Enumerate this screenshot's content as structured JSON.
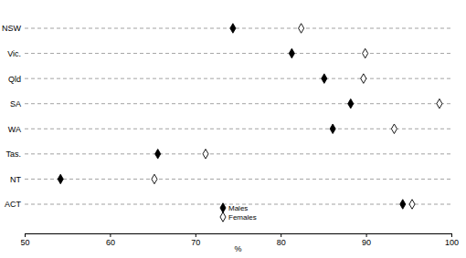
{
  "chart_data": {
    "type": "dot",
    "orientation": "horizontal",
    "categories": [
      "NSW",
      "Vic.",
      "Qld",
      "SA",
      "WA",
      "Tas.",
      "NT",
      "ACT"
    ],
    "series": [
      {
        "name": "Males",
        "color": "#000000",
        "marker": "diamond",
        "values": [
          74.4,
          81.3,
          85.1,
          88.2,
          86.1,
          65.6,
          54.2,
          94.3
        ]
      },
      {
        "name": "Females",
        "color": "#000000",
        "marker": "diamond-open",
        "values": [
          82.4,
          89.9,
          89.7,
          98.6,
          93.3,
          71.2,
          65.2,
          95.4
        ]
      }
    ],
    "x_label": "%",
    "xlim": [
      50,
      100
    ],
    "xticks": [
      50,
      60,
      70,
      80,
      90,
      100
    ],
    "grid": true,
    "legend": "bottom"
  }
}
